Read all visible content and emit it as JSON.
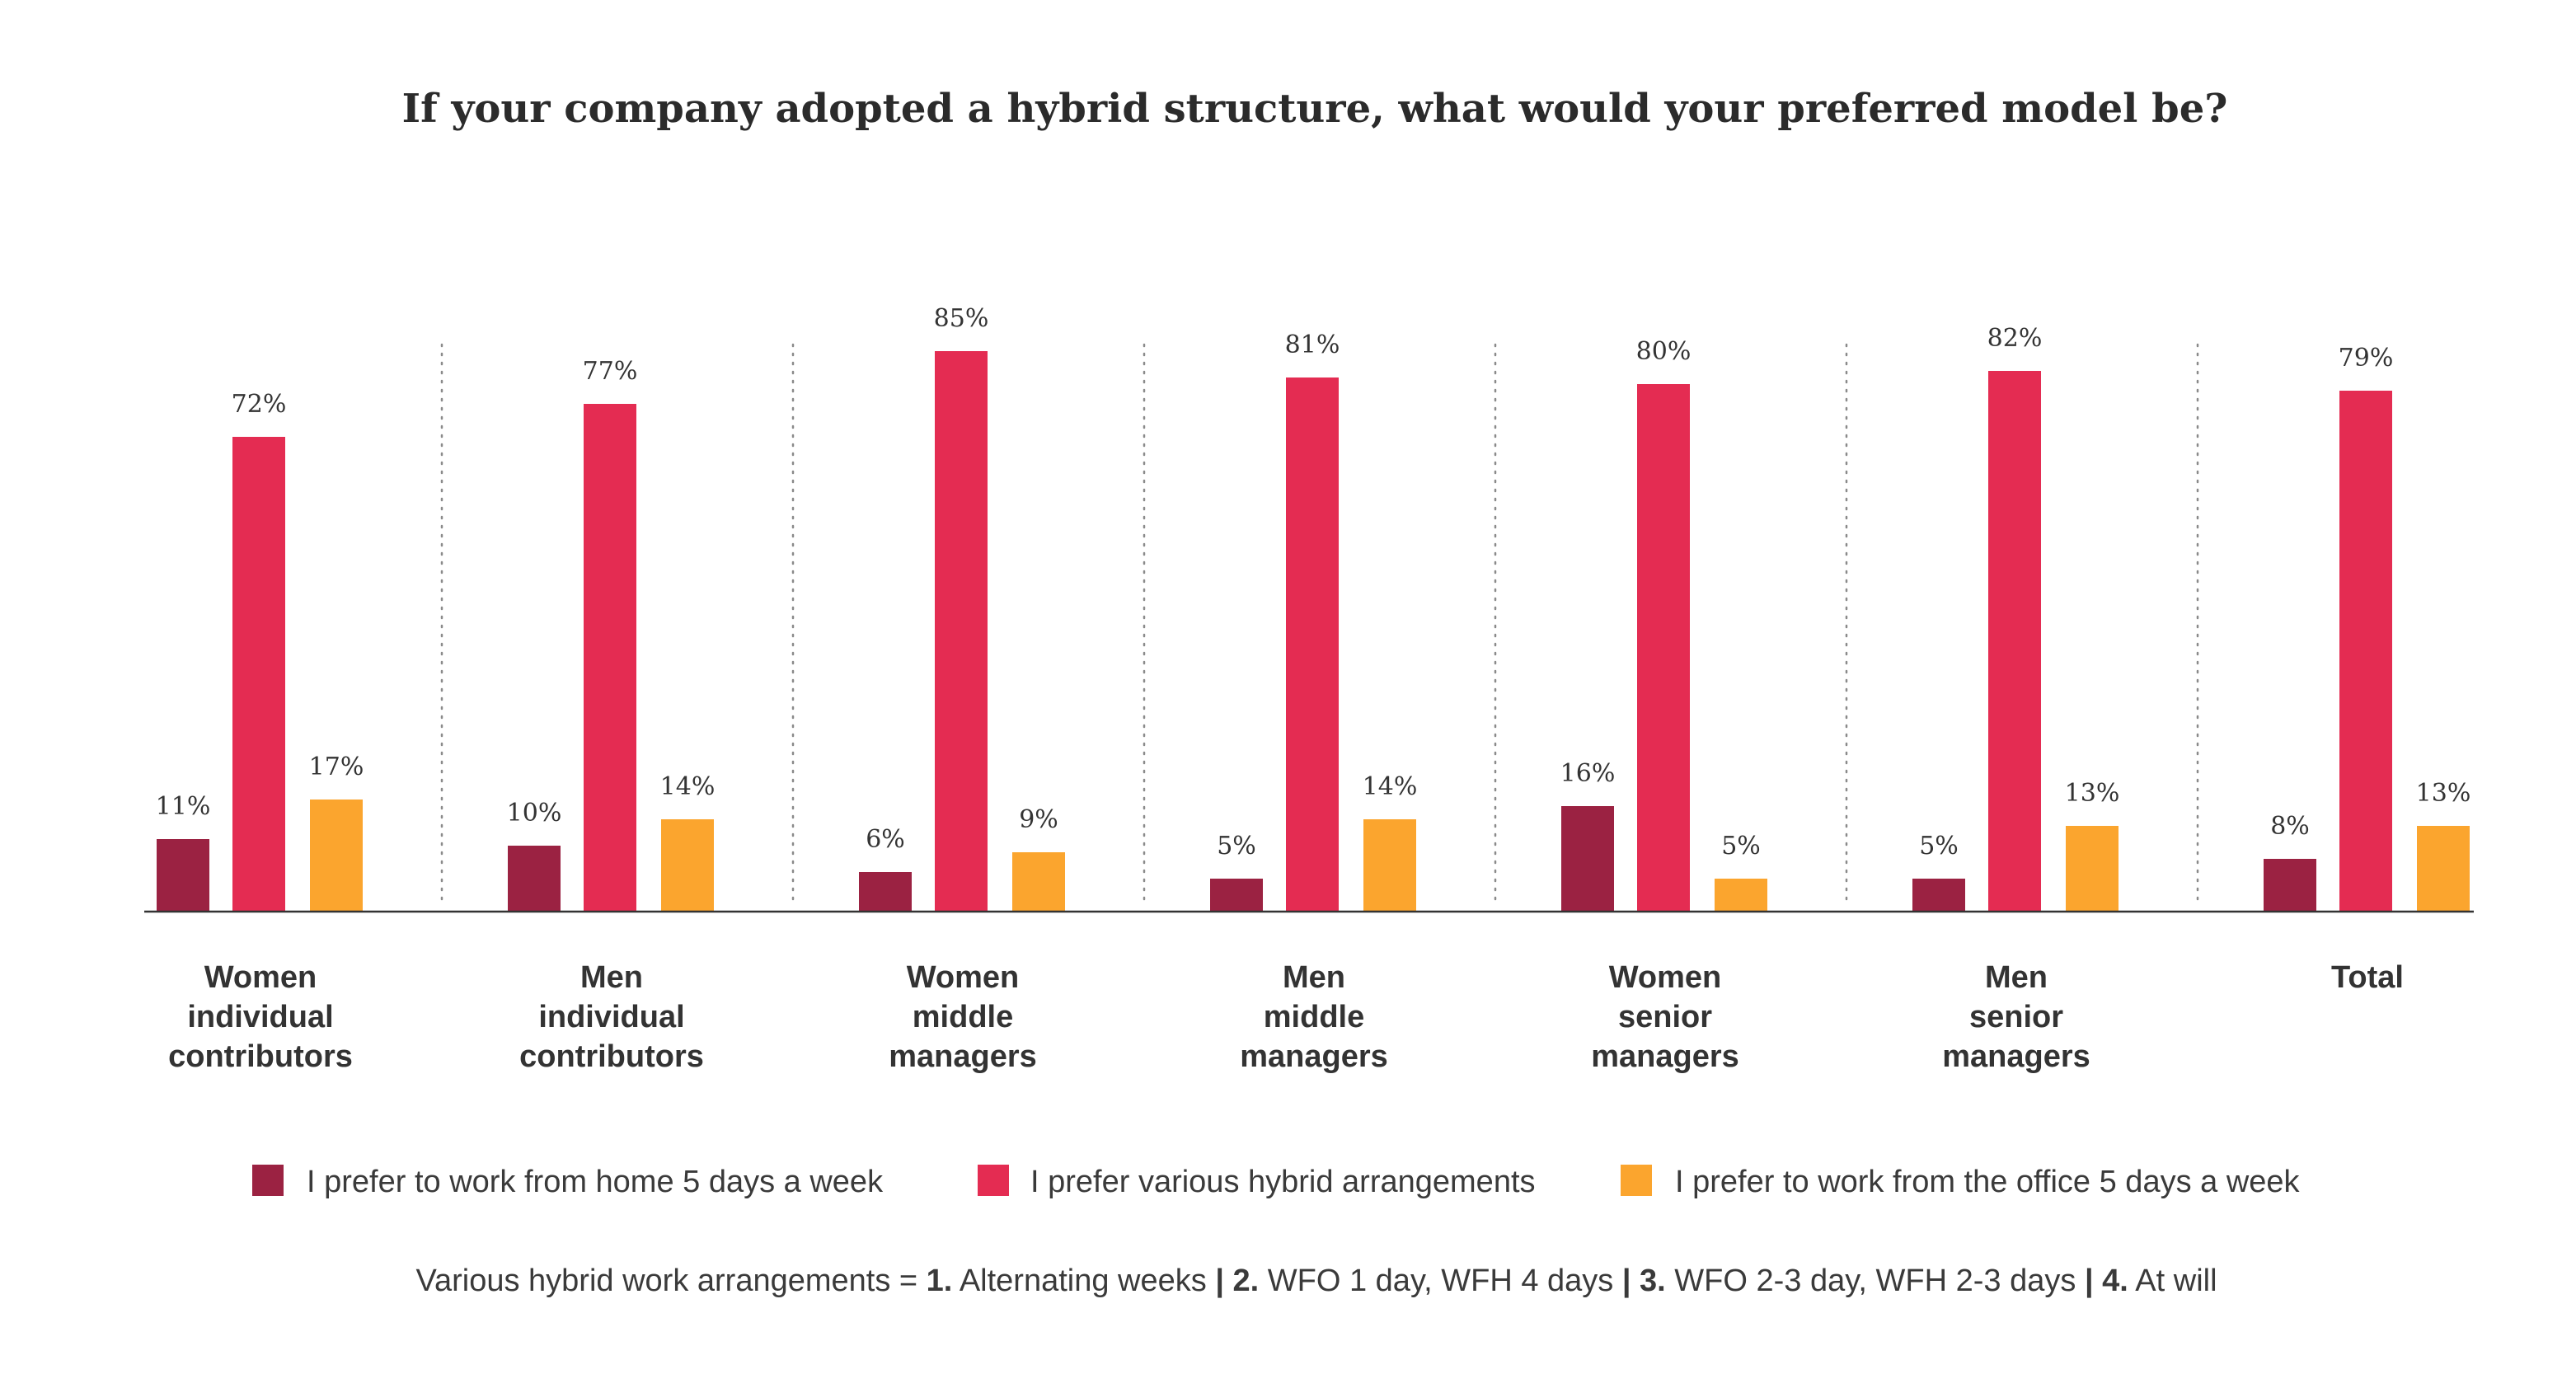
{
  "chart_data": {
    "type": "bar",
    "title": "If your company adopted a hybrid structure, what would your preferred model be?",
    "categories": [
      [
        "Women",
        "individual",
        "contributors"
      ],
      [
        "Men",
        "individual",
        "contributors"
      ],
      [
        "Women",
        "middle",
        "managers"
      ],
      [
        "Men",
        "middle",
        "managers"
      ],
      [
        "Women",
        "senior",
        "managers"
      ],
      [
        "Men",
        "senior",
        "managers"
      ],
      [
        "Total"
      ]
    ],
    "series": [
      {
        "name": "I prefer to work from home 5 days a week",
        "color": "#9b2242",
        "values": [
          11,
          10,
          6,
          5,
          16,
          5,
          8
        ]
      },
      {
        "name": "I prefer various hybrid arrangements",
        "color": "#e42c52",
        "values": [
          72,
          77,
          85,
          81,
          80,
          82,
          79
        ]
      },
      {
        "name": "I prefer to work from the office 5 days a week",
        "color": "#fba52e",
        "values": [
          17,
          14,
          9,
          14,
          5,
          13,
          13
        ]
      }
    ],
    "value_suffix": "%",
    "ylim": [
      0,
      100
    ],
    "grid": false,
    "legend_position": "bottom",
    "separators": "dotted vertical lines between categories"
  },
  "footnote": {
    "parts": [
      {
        "text": "Various hybrid work arrangements = ",
        "bold": false
      },
      {
        "text": "1.",
        "bold": true
      },
      {
        "text": " Alternating weeks ",
        "bold": false
      },
      {
        "text": "|",
        "bold": true
      },
      {
        "text": " ",
        "bold": false
      },
      {
        "text": "2.",
        "bold": true
      },
      {
        "text": " WFO 1 day, WFH 4 days ",
        "bold": false
      },
      {
        "text": "|",
        "bold": true
      },
      {
        "text": " ",
        "bold": false
      },
      {
        "text": "3.",
        "bold": true
      },
      {
        "text": " WFO 2-3 day, WFH 2-3 days ",
        "bold": false
      },
      {
        "text": "|",
        "bold": true
      },
      {
        "text": " ",
        "bold": false
      },
      {
        "text": "4.",
        "bold": true
      },
      {
        "text": " At will",
        "bold": false
      }
    ]
  }
}
